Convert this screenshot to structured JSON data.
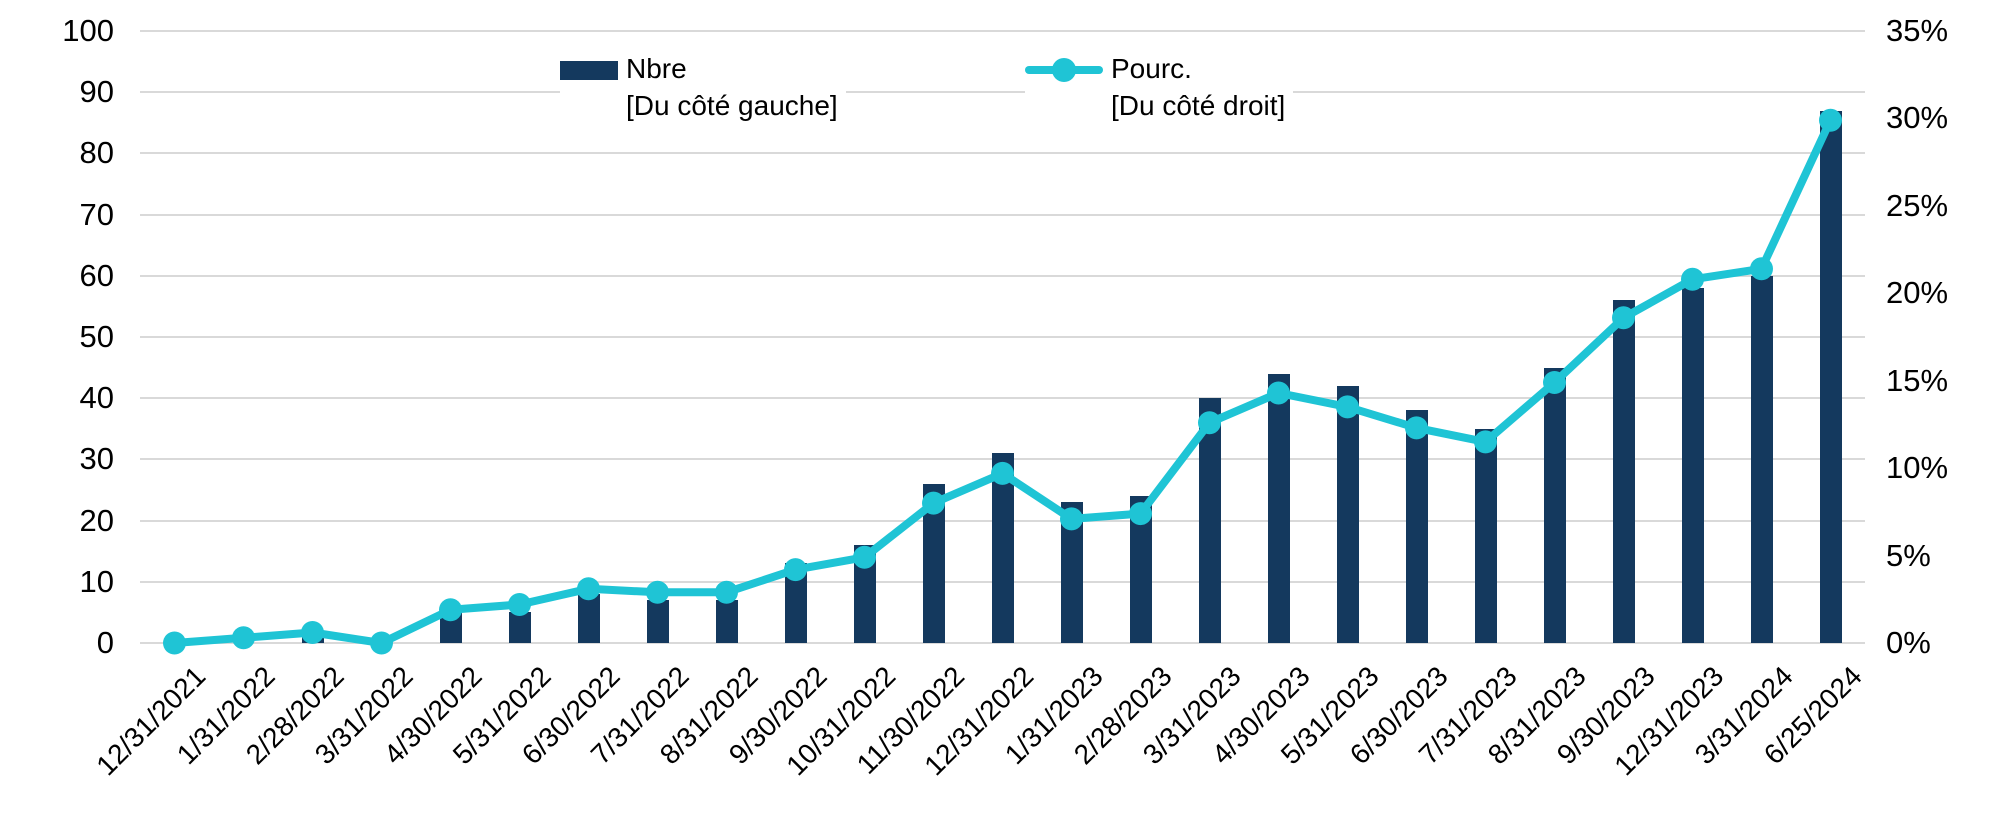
{
  "chart_data": {
    "type": "bar",
    "combo": true,
    "title": "",
    "xlabel": "",
    "ylabel": "",
    "grid": true,
    "legend_position": "top",
    "categories": [
      "12/31/2021",
      "1/31/2022",
      "2/28/2022",
      "3/31/2022",
      "4/30/2022",
      "5/31/2022",
      "6/30/2022",
      "7/31/2022",
      "8/31/2022",
      "9/30/2022",
      "10/31/2022",
      "11/30/2022",
      "12/31/2022",
      "1/31/2023",
      "2/28/2023",
      "3/31/2023",
      "4/30/2023",
      "5/31/2023",
      "6/30/2023",
      "7/31/2023",
      "8/31/2023",
      "9/30/2023",
      "12/31/2023",
      "3/31/2024",
      "6/25/2024"
    ],
    "series": [
      {
        "name": "Nbre",
        "axis_note": "[Du côté gauche]",
        "type": "bar",
        "axis": "left",
        "values": [
          0,
          0,
          1,
          0,
          5,
          5,
          8,
          7,
          7,
          13,
          16,
          26,
          31,
          23,
          24,
          40,
          44,
          42,
          38,
          35,
          45,
          56,
          58,
          60,
          87
        ]
      },
      {
        "name": "Pourc.",
        "axis_note": "[Du côté droit]",
        "type": "line",
        "axis": "right",
        "unit": "%",
        "values": [
          0,
          0.3,
          0.6,
          0,
          1.9,
          2.2,
          3.1,
          2.9,
          2.9,
          4.2,
          4.9,
          8,
          9.7,
          7.1,
          7.4,
          12.6,
          14.3,
          13.5,
          12.3,
          11.5,
          14.9,
          18.6,
          20.8,
          21.4,
          29.9
        ]
      }
    ],
    "left_axis": {
      "min": 0,
      "max": 100,
      "step": 10,
      "ticks": [
        "0",
        "10",
        "20",
        "30",
        "40",
        "50",
        "60",
        "70",
        "80",
        "90",
        "100"
      ]
    },
    "right_axis": {
      "min": 0,
      "max": 35,
      "step": 5,
      "ticks": [
        "0%",
        "5%",
        "10%",
        "15%",
        "20%",
        "25%",
        "30%",
        "35%"
      ]
    },
    "colors": {
      "bar": "#14395E",
      "line": "#1FC4D5",
      "grid": "#D9D9D9",
      "text": "#000000"
    }
  }
}
